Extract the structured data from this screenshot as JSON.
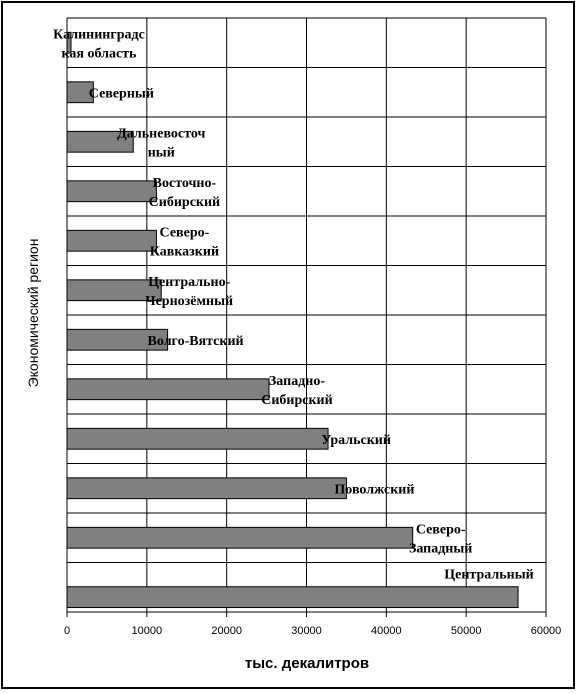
{
  "chart_data": {
    "type": "bar",
    "orientation": "horizontal",
    "categories": [
      [
        "Калининградс",
        "кая область"
      ],
      [
        "Северный"
      ],
      [
        "Дальневосточ",
        "ный"
      ],
      [
        "Восточно-",
        "Сибирский"
      ],
      [
        "Северо-",
        "Кавказкий"
      ],
      [
        "Центрально-",
        "Чернозёмный"
      ],
      [
        "Волго-Вятский"
      ],
      [
        "Западно-",
        "Сибирский"
      ],
      [
        "Уральский"
      ],
      [
        "Поволжский"
      ],
      [
        "Северо-",
        "Западный"
      ],
      [
        "Центральный"
      ]
    ],
    "values": [
      500,
      3300,
      8300,
      11200,
      11200,
      11800,
      12600,
      25300,
      32700,
      35000,
      43300,
      56500
    ],
    "xlabel": "тыс. декалитров",
    "ylabel": "Экономический регион",
    "xlim": [
      0,
      60000
    ],
    "xticks": [
      0,
      10000,
      20000,
      30000,
      40000,
      50000,
      60000
    ],
    "grid": true,
    "bar_color": "#808080"
  }
}
